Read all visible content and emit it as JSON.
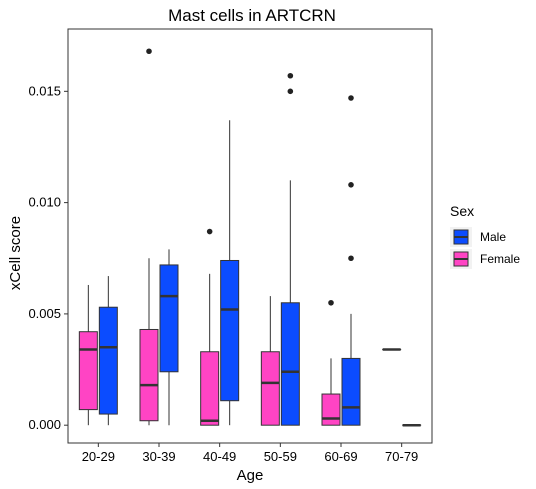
{
  "chart_data": {
    "type": "box",
    "title": "Mast cells in ARTCRN",
    "xlabel": "Age",
    "ylabel": "xCell score",
    "categories": [
      "20-29",
      "30-39",
      "40-49",
      "50-59",
      "60-69",
      "70-79"
    ],
    "ylim": [
      -0.0008,
      0.0178
    ],
    "yticks": [
      0.0,
      0.005,
      0.01,
      0.015
    ],
    "ytick_labels": [
      "0.000",
      "0.005",
      "0.010",
      "0.015"
    ],
    "grid": false,
    "legend": {
      "title": "Sex",
      "position": "right",
      "entries": [
        {
          "label": "Male",
          "color": "#0b4cff"
        },
        {
          "label": "Female",
          "color": "#ff44c4"
        }
      ]
    },
    "series": [
      {
        "name": "Female",
        "color": "#ff44c4",
        "boxes": [
          {
            "category": "20-29",
            "min": 0.0,
            "q1": 0.0007,
            "median": 0.0034,
            "q3": 0.0042,
            "max": 0.0063,
            "outliers": []
          },
          {
            "category": "30-39",
            "min": 0.0,
            "q1": 0.0002,
            "median": 0.0018,
            "q3": 0.0043,
            "max": 0.0075,
            "outliers": [
              0.0168
            ]
          },
          {
            "category": "40-49",
            "min": 0.0,
            "q1": 0.0,
            "median": 0.0002,
            "q3": 0.0033,
            "max": 0.0068,
            "outliers": [
              0.0087
            ]
          },
          {
            "category": "50-59",
            "min": 0.0,
            "q1": 0.0,
            "median": 0.0019,
            "q3": 0.0033,
            "max": 0.0058,
            "outliers": []
          },
          {
            "category": "60-69",
            "min": 0.0,
            "q1": 0.0,
            "median": 0.0003,
            "q3": 0.0014,
            "max": 0.003,
            "outliers": [
              0.0055
            ]
          },
          {
            "category": "70-79",
            "min": 0.0034,
            "q1": 0.0034,
            "median": 0.0034,
            "q3": 0.0034,
            "max": 0.0034,
            "outliers": []
          }
        ]
      },
      {
        "name": "Male",
        "color": "#0b4cff",
        "boxes": [
          {
            "category": "20-29",
            "min": 0.0,
            "q1": 0.0005,
            "median": 0.0035,
            "q3": 0.0053,
            "max": 0.0067,
            "outliers": []
          },
          {
            "category": "30-39",
            "min": 0.0,
            "q1": 0.0024,
            "median": 0.0058,
            "q3": 0.0072,
            "max": 0.0079,
            "outliers": []
          },
          {
            "category": "40-49",
            "min": 0.0,
            "q1": 0.0011,
            "median": 0.0052,
            "q3": 0.0074,
            "max": 0.0137,
            "outliers": []
          },
          {
            "category": "50-59",
            "min": 0.0,
            "q1": 0.0,
            "median": 0.0024,
            "q3": 0.0055,
            "max": 0.011,
            "outliers": [
              0.015,
              0.0157
            ]
          },
          {
            "category": "60-69",
            "min": 0.0,
            "q1": 0.0,
            "median": 0.0008,
            "q3": 0.003,
            "max": 0.005,
            "outliers": [
              0.0075,
              0.0108,
              0.0147
            ]
          },
          {
            "category": "70-79",
            "min": 0.0,
            "q1": 0.0,
            "median": 0.0,
            "q3": 0.0,
            "max": 0.0,
            "outliers": []
          }
        ]
      }
    ]
  }
}
